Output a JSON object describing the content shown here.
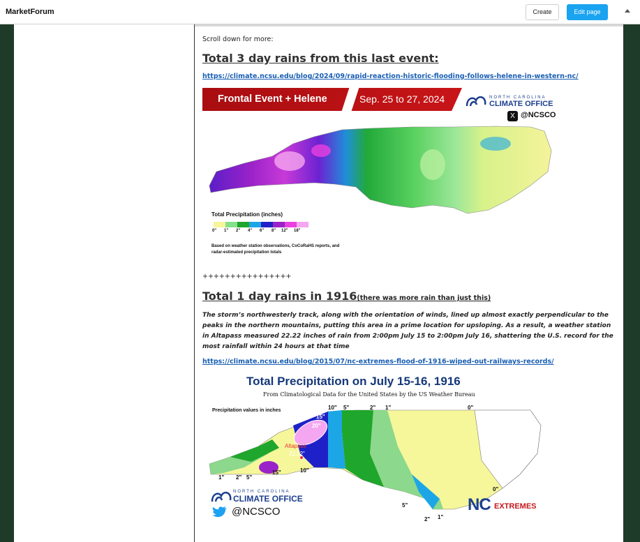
{
  "topbar": {
    "brand": "MarketForum",
    "create_label": "Create",
    "edit_label": "Edit page"
  },
  "post": {
    "scroll_note": "Scroll down for more:",
    "heading1": "Total 3 day rains from this last event:",
    "link1": "https://climate.ncsu.edu/blog/2024/09/rapid-reaction-historic-flooding-follows-helene-in-western-nc/",
    "separator": "++++++++++++++++",
    "heading2": "Total 1 day rains in 1916",
    "heading2_sub": "(there was more rain than just this)",
    "quote": "The storm’s northwesterly track, along with the orientation of winds, lined up almost exactly perpendicular to the peaks in the northern mountains, putting this area in a prime location for upsloping. As a result, a weather station in Altapass measured 22.22 inches of rain from 2:00pm July 15 to 2:00pm July 16, shattering the U.S. record for the most rainfall within 24 hours at that time",
    "link2": "https://climate.ncsu.edu/blog/2015/07/nc-extremes-flood-of-1916-wiped-out-railways-records/"
  },
  "map1": {
    "banner_title": "Frontal Event + Helene",
    "banner_date": "Sep. 25 to 27, 2024",
    "logo_line1": "NORTH CAROLINA",
    "logo_line2": "CLIMATE OFFICE",
    "handle": "@NCSCO",
    "x_glyph": "X",
    "legend_title": "Total Precipitation (inches)",
    "legend_ticks": [
      "0\"",
      "1\"",
      "2\"",
      "4\"",
      "6\"",
      "8\"",
      "12\"",
      "18\""
    ],
    "legend_colors": [
      "#f6f59a",
      "#86e08a",
      "#1fa62c",
      "#1ca6e6",
      "#1f21c8",
      "#9a22c9",
      "#ea40e0",
      "#f5a6f0"
    ],
    "legend_note": "Based on weather station observations, CoCoRaHS reports, and radar-estimated precipitation totals"
  },
  "map2": {
    "title": "Total Precipitation on July 15-16, 1916",
    "subtitle": "From Climatological Data for the United States by the US Weather Bureau",
    "note": "Precipitation values in inches",
    "labels": {
      "l10": "10\"",
      "l5a": "5\"",
      "l2a": "2\"",
      "l1a": "1\"",
      "l0a": "0\"",
      "l15": "15\"",
      "l20": "20\"",
      "altapass": "Altapass",
      "val": "22.22\"",
      "l15b": "15\"",
      "l10b": "10\"",
      "l1b": "1\"",
      "l2b": "2\"",
      "l5b": "5\"",
      "l0b": "0\"",
      "l5c": "5\"",
      "l2c": "2\"",
      "l1c": "1\""
    },
    "logo_line1": "NORTH CAROLINA",
    "logo_line2": "CLIMATE OFFICE",
    "handle": "@NCSCO",
    "nc": "NC",
    "extremes": "EXTREMES"
  }
}
